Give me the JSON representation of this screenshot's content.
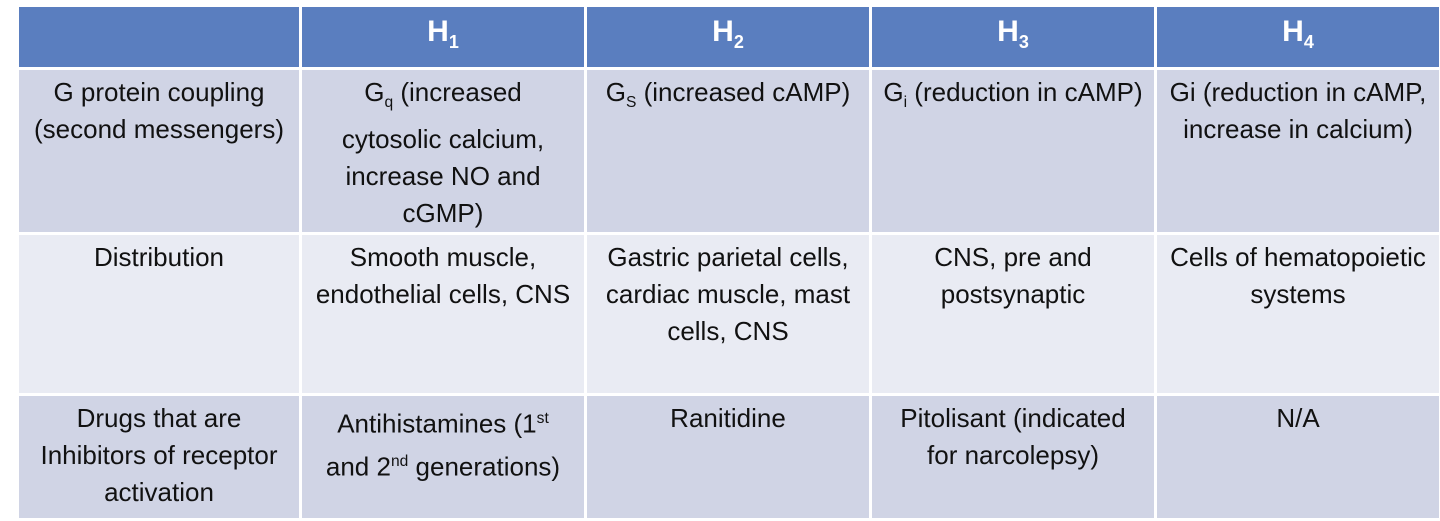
{
  "table": {
    "header": [
      [
        {
          "text": "H"
        },
        {
          "sub": "1"
        }
      ],
      [
        {
          "text": "H"
        },
        {
          "sub": "2"
        }
      ],
      [
        {
          "text": "H"
        },
        {
          "sub": "3"
        }
      ],
      [
        {
          "text": "H"
        },
        {
          "sub": "4"
        }
      ]
    ],
    "rows": [
      {
        "label": "G protein coupling (second messengers)",
        "cells": [
          [
            {
              "text": "G"
            },
            {
              "sub": "q"
            },
            {
              "text": " (increased cytosolic calcium, increase NO and cGMP)"
            }
          ],
          [
            {
              "text": "G"
            },
            {
              "sub": "S"
            },
            {
              "text": " (increased cAMP)"
            }
          ],
          [
            {
              "text": "G"
            },
            {
              "sub": "i"
            },
            {
              "text": " (reduction in cAMP)"
            }
          ],
          [
            {
              "text": "Gi (reduction in cAMP, increase in calcium)"
            }
          ]
        ]
      },
      {
        "label": "Distribution",
        "cells": [
          [
            {
              "text": "Smooth muscle, endothelial cells, CNS"
            }
          ],
          [
            {
              "text": "Gastric parietal cells, cardiac muscle, mast cells, CNS"
            }
          ],
          [
            {
              "text": "CNS, pre and postsynaptic"
            }
          ],
          [
            {
              "text": "Cells of hematopoietic systems"
            }
          ]
        ]
      },
      {
        "label": "Drugs that are Inhibitors of receptor activation",
        "cells": [
          [
            {
              "text": "Antihistamines (1"
            },
            {
              "sup": "st"
            },
            {
              "text": " and 2"
            },
            {
              "sup": "nd"
            },
            {
              "text": " generations)"
            }
          ],
          [
            {
              "text": "Ranitidine"
            }
          ],
          [
            {
              "text": "Pitolisant (indicated for narcolepsy)"
            }
          ],
          [
            {
              "text": "N/A"
            }
          ]
        ]
      }
    ]
  }
}
